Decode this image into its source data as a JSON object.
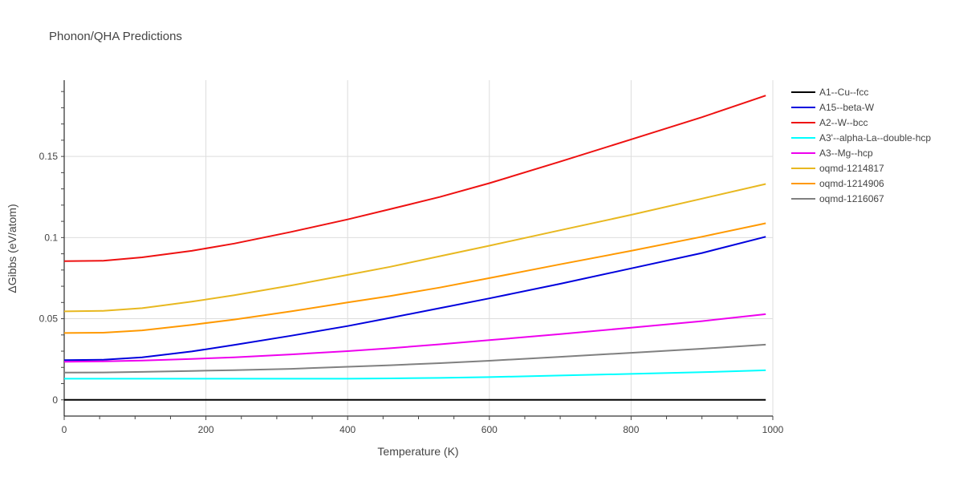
{
  "chart_data": {
    "type": "line",
    "title": "Phonon/QHA Predictions",
    "xlabel": "Temperature (K)",
    "ylabel": "ΔGibbs (eV/atom)",
    "xlim": [
      0,
      1000
    ],
    "ylim": [
      -0.01,
      0.197
    ],
    "x_ticks": [
      0,
      200,
      400,
      600,
      800,
      1000
    ],
    "x_tick_labels": [
      "0",
      "200",
      "400",
      "600",
      "800",
      "1000"
    ],
    "y_ticks": [
      0,
      0.05,
      0.1,
      0.15
    ],
    "y_tick_labels": [
      "0",
      "0.05",
      "0.1",
      "0.15"
    ],
    "grid": true,
    "legend_position": "right",
    "x": [
      0,
      55,
      110,
      180,
      240,
      320,
      400,
      460,
      530,
      600,
      700,
      800,
      900,
      990
    ],
    "series": [
      {
        "name": "A1--Cu--fcc",
        "color": "#000000",
        "values": [
          0,
          0,
          0,
          0,
          0,
          0,
          0,
          0,
          0,
          0,
          0,
          0,
          0,
          0
        ]
      },
      {
        "name": "A15--beta-W",
        "color": "#0000dd",
        "values": [
          0.0245,
          0.0247,
          0.0262,
          0.0298,
          0.0338,
          0.0395,
          0.0455,
          0.0505,
          0.0565,
          0.0625,
          0.0715,
          0.081,
          0.0905,
          0.1005
        ]
      },
      {
        "name": "A2--W--bcc",
        "color": "#ee1111",
        "values": [
          0.0855,
          0.0857,
          0.0878,
          0.0918,
          0.0963,
          0.1035,
          0.1112,
          0.1175,
          0.125,
          0.1335,
          0.1468,
          0.1605,
          0.1742,
          0.1875
        ]
      },
      {
        "name": "A3'--alpha-La--double-hcp",
        "color": "#00ffff",
        "values": [
          0.013,
          0.013,
          0.013,
          0.013,
          0.013,
          0.013,
          0.013,
          0.0132,
          0.0135,
          0.014,
          0.015,
          0.016,
          0.017,
          0.0182
        ]
      },
      {
        "name": "A3--Mg--hcp",
        "color": "#ee00ee",
        "values": [
          0.0235,
          0.0237,
          0.0242,
          0.0252,
          0.0262,
          0.028,
          0.03,
          0.0318,
          0.0342,
          0.0368,
          0.0405,
          0.0445,
          0.0485,
          0.0528
        ]
      },
      {
        "name": "oqmd-1214817",
        "color": "#e8b820",
        "values": [
          0.0545,
          0.0548,
          0.0565,
          0.0605,
          0.0645,
          0.0705,
          0.077,
          0.082,
          0.0885,
          0.095,
          0.1045,
          0.114,
          0.124,
          0.133
        ]
      },
      {
        "name": "oqmd-1214906",
        "color": "#ff9900",
        "values": [
          0.0412,
          0.0414,
          0.0428,
          0.0462,
          0.0495,
          0.0545,
          0.06,
          0.064,
          0.0692,
          0.075,
          0.0835,
          0.0918,
          0.1005,
          0.1088
        ]
      },
      {
        "name": "oqmd-1216067",
        "color": "#808080",
        "values": [
          0.0168,
          0.0169,
          0.0172,
          0.0178,
          0.0183,
          0.0191,
          0.0204,
          0.0213,
          0.0226,
          0.0241,
          0.0265,
          0.029,
          0.0315,
          0.034
        ]
      }
    ]
  }
}
